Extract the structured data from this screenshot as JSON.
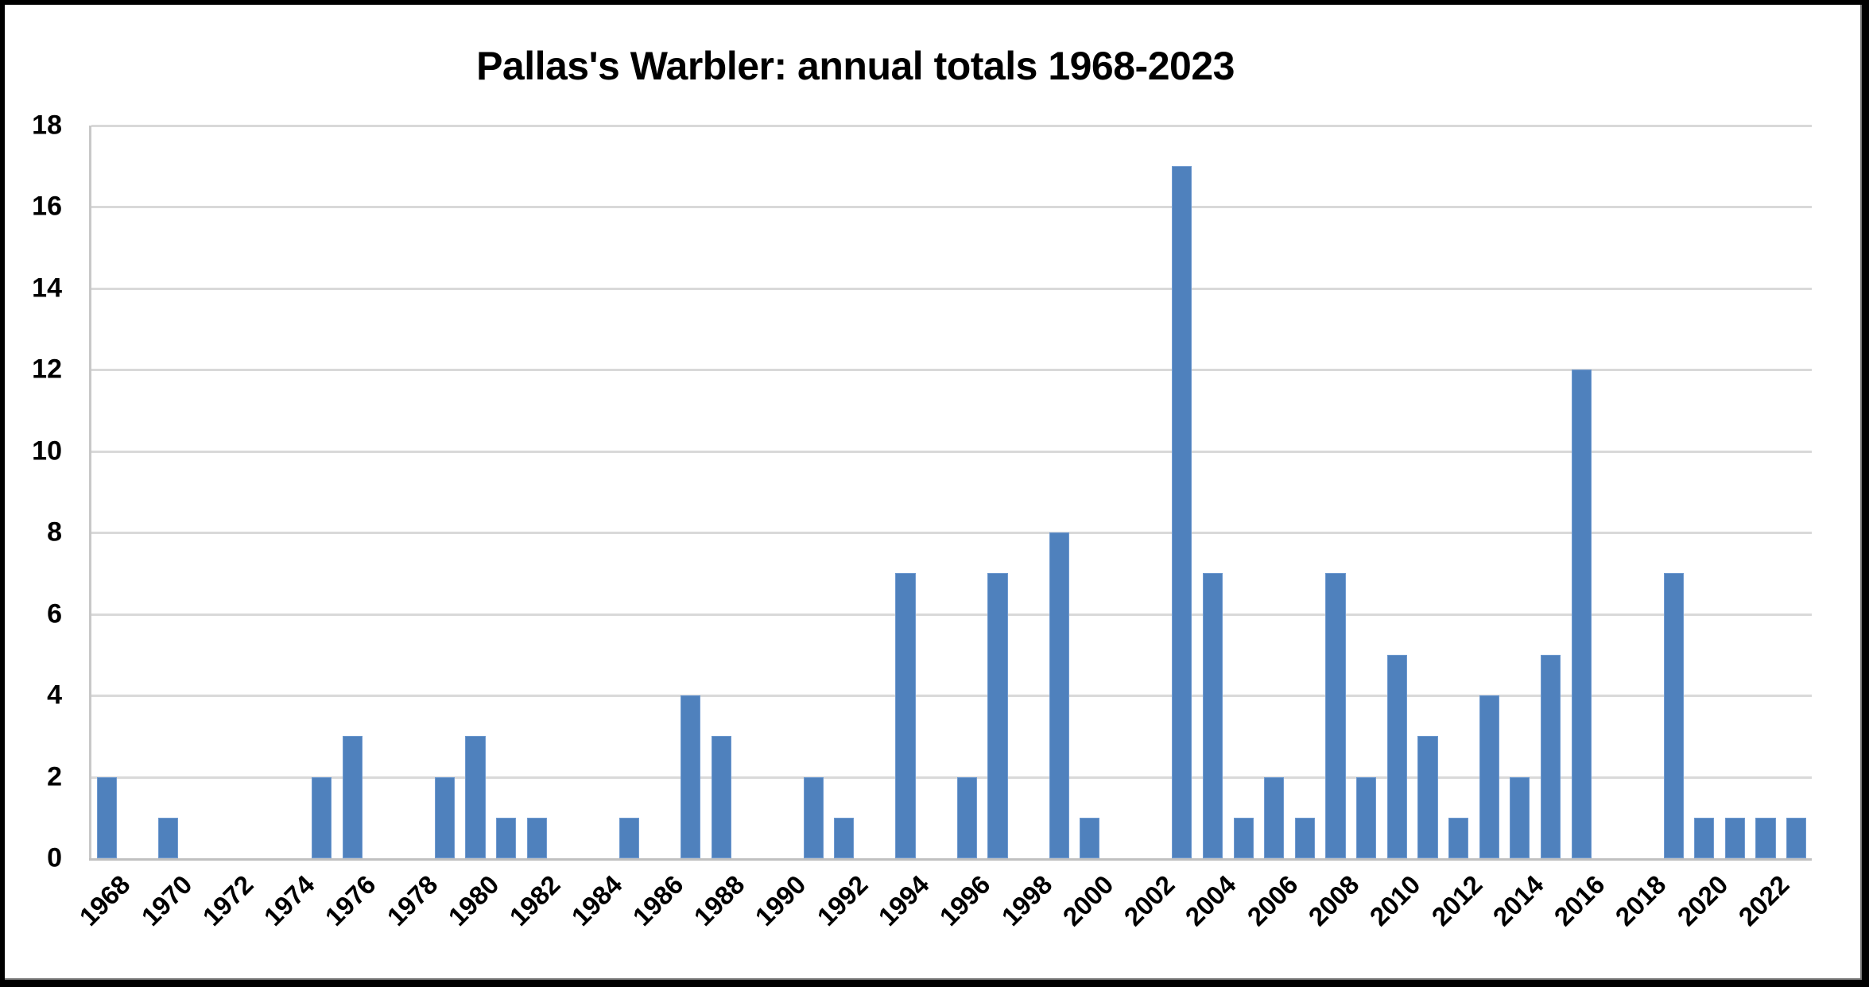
{
  "chart_data": {
    "type": "bar",
    "title": "Pallas's Warbler: annual totals 1968-2023",
    "xlabel": "",
    "ylabel": "",
    "ylim": [
      0,
      18
    ],
    "yticks": [
      0,
      2,
      4,
      6,
      8,
      10,
      12,
      14,
      16,
      18
    ],
    "grid": true,
    "legend": null,
    "bar_color": "#4f81bd",
    "categories": [
      "1968",
      "1969",
      "1970",
      "1971",
      "1972",
      "1973",
      "1974",
      "1975",
      "1976",
      "1977",
      "1978",
      "1979",
      "1980",
      "1981",
      "1982",
      "1983",
      "1984",
      "1985",
      "1986",
      "1987",
      "1988",
      "1989",
      "1990",
      "1991",
      "1992",
      "1993",
      "1994",
      "1995",
      "1996",
      "1997",
      "1998",
      "1999",
      "2000",
      "2001",
      "2002",
      "2003",
      "2004",
      "2005",
      "2006",
      "2007",
      "2008",
      "2009",
      "2010",
      "2011",
      "2012",
      "2013",
      "2014",
      "2015",
      "2016",
      "2017",
      "2018",
      "2019",
      "2020",
      "2021",
      "2022",
      "2023"
    ],
    "x_tick_labels": [
      "1968",
      "1970",
      "1972",
      "1974",
      "1976",
      "1978",
      "1980",
      "1982",
      "1984",
      "1986",
      "1988",
      "1990",
      "1992",
      "1994",
      "1996",
      "1998",
      "2000",
      "2002",
      "2004",
      "2006",
      "2008",
      "2010",
      "2012",
      "2014",
      "2016",
      "2018",
      "2020",
      "2022"
    ],
    "values": [
      2,
      0,
      1,
      0,
      0,
      0,
      0,
      2,
      3,
      0,
      0,
      2,
      3,
      1,
      1,
      0,
      0,
      1,
      0,
      4,
      3,
      0,
      0,
      2,
      1,
      0,
      7,
      0,
      2,
      7,
      0,
      8,
      1,
      0,
      0,
      17,
      7,
      1,
      2,
      1,
      7,
      2,
      5,
      3,
      1,
      4,
      2,
      5,
      12,
      0,
      0,
      7,
      1,
      1,
      1,
      1
    ]
  }
}
